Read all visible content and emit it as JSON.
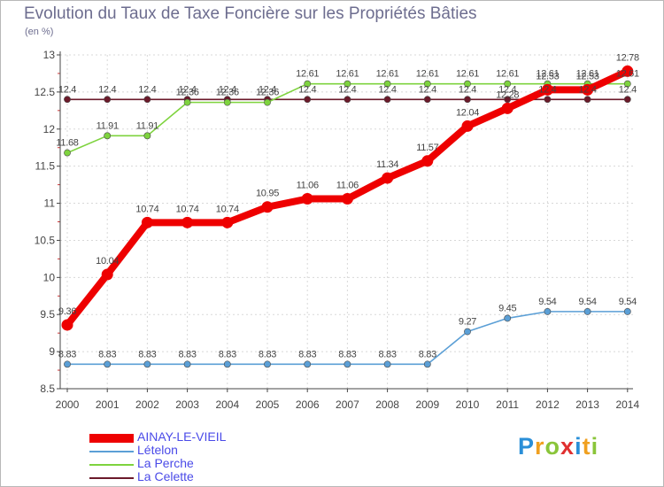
{
  "chart_data": {
    "type": "line",
    "title": "Evolution du Taux de Taxe Foncière sur les Propriétés Bâties",
    "subtitle": "(en %)",
    "xlabel": "",
    "ylabel": "",
    "ylim": [
      8.5,
      13
    ],
    "yticks": [
      "8.5",
      "9",
      "9.5",
      "10",
      "10.5",
      "11",
      "11.5",
      "12",
      "12.5",
      "13"
    ],
    "categories": [
      "2000",
      "2001",
      "2002",
      "2003",
      "2004",
      "2005",
      "2006",
      "2007",
      "2008",
      "2009",
      "2010",
      "2011",
      "2012",
      "2013",
      "2014"
    ],
    "grid": true,
    "legend_position": "bottom-left",
    "series": [
      {
        "name": "La Celette",
        "color": "#6b1a2a",
        "values": [
          12.4,
          12.4,
          12.4,
          12.4,
          12.4,
          12.4,
          12.4,
          12.4,
          12.4,
          12.4,
          12.4,
          12.4,
          12.4,
          12.4,
          12.4
        ],
        "labels": [
          "12.4",
          "12.4",
          "12.4",
          "12.4",
          "12.4",
          "12.4",
          "12.4",
          "12.4",
          "12.4",
          "12.4",
          "12.4",
          "12.4",
          "12.4",
          "12.4",
          "12.4"
        ]
      },
      {
        "name": "La Perche",
        "color": "#7ed33e",
        "values": [
          11.68,
          11.91,
          11.91,
          12.36,
          12.36,
          12.36,
          12.61,
          12.61,
          12.61,
          12.61,
          12.61,
          12.61,
          12.61,
          12.61,
          12.61
        ],
        "labels": [
          "11.68",
          "11.91",
          "11.91",
          "12.36",
          "12.36",
          "12.36",
          "12.61",
          "12.61",
          "12.61",
          "12.61",
          "12.61",
          "12.61",
          "12.61",
          "12.61",
          "12.61"
        ]
      },
      {
        "name": "Lételon",
        "color": "#5b9fd6",
        "values": [
          8.83,
          8.83,
          8.83,
          8.83,
          8.83,
          8.83,
          8.83,
          8.83,
          8.83,
          8.83,
          9.27,
          9.45,
          9.54,
          9.54,
          9.54
        ],
        "labels": [
          "8.83",
          "8.83",
          "8.83",
          "8.83",
          "8.83",
          "8.83",
          "8.83",
          "8.83",
          "8.83",
          "8.83",
          "9.27",
          "9.45",
          "9.54",
          "9.54",
          "9.54"
        ]
      },
      {
        "name": "AINAY-LE-VIEIL",
        "color": "#ee0000",
        "values": [
          9.36,
          10.04,
          10.74,
          10.74,
          10.74,
          10.95,
          11.06,
          11.06,
          11.34,
          11.57,
          12.04,
          12.28,
          12.53,
          12.53,
          12.78
        ],
        "labels": [
          "9.36",
          "10.04",
          "10.74",
          "10.74",
          "10.74",
          "10.95",
          "11.06",
          "11.06",
          "11.34",
          "11.57",
          "12.04",
          "12.28",
          "12.53",
          "12.53",
          "12.78"
        ]
      }
    ]
  },
  "legend": {
    "items": [
      {
        "label": "AINAY-LE-VIEIL",
        "color": "#ee0000"
      },
      {
        "label": "Lételon",
        "color": "#5b9fd6"
      },
      {
        "label": "La Perche",
        "color": "#7ed33e"
      },
      {
        "label": "La Celette",
        "color": "#6b1a2a"
      }
    ]
  },
  "logo": {
    "letters": [
      "P",
      "r",
      "o",
      "x",
      "i",
      "t",
      "i"
    ],
    "colors": [
      "#2a8fd8",
      "#f0a020",
      "#8ac53a",
      "#e03030",
      "#2a8fd8",
      "#f0a020",
      "#8ac53a"
    ]
  }
}
